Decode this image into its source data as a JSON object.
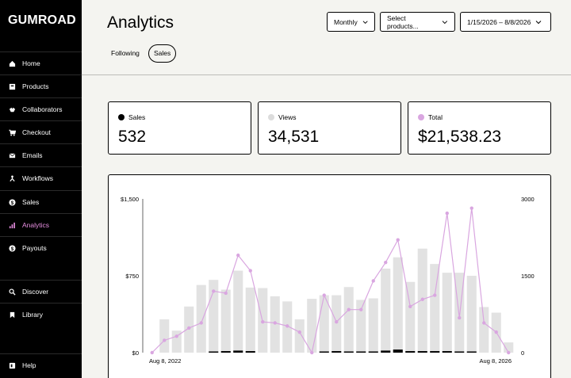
{
  "brand": "GUMROAD",
  "sidebar": {
    "items": [
      {
        "label": "Home",
        "icon": "home-icon"
      },
      {
        "label": "Products",
        "icon": "products-icon"
      },
      {
        "label": "Collaborators",
        "icon": "collaborators-icon"
      },
      {
        "label": "Checkout",
        "icon": "cart-icon"
      },
      {
        "label": "Emails",
        "icon": "mail-icon"
      },
      {
        "label": "Workflows",
        "icon": "workflow-icon"
      },
      {
        "label": "Sales",
        "icon": "dollar-icon"
      },
      {
        "label": "Analytics",
        "icon": "bar-chart-icon"
      },
      {
        "label": "Payouts",
        "icon": "payout-icon"
      },
      {
        "label": "Discover",
        "icon": "search-icon"
      },
      {
        "label": "Library",
        "icon": "bookmark-icon"
      },
      {
        "label": "Help",
        "icon": "help-icon"
      }
    ],
    "active": "Analytics",
    "active_color": "#e68ee0"
  },
  "header": {
    "title": "Analytics",
    "tabs": {
      "following": "Following",
      "sales": "Sales"
    },
    "filters": {
      "period": "Monthly",
      "products": "Select products...",
      "date_range": "1/15/2026 – 8/8/2026"
    }
  },
  "stats": {
    "sales": {
      "label": "Sales",
      "value": "532",
      "color": "#000000"
    },
    "views": {
      "label": "Views",
      "value": "34,531",
      "color": "#dcdcdc"
    },
    "total": {
      "label": "Total",
      "value": "$21,538.23",
      "color": "#d9a6e0"
    }
  },
  "chart_data": {
    "type": "bar",
    "x_start_label": "Aug 8, 2022",
    "x_end_label": "Aug 8, 2026",
    "left_axis_ticks": [
      "$0",
      "$750",
      "$1,500"
    ],
    "right_axis_ticks": [
      "0",
      "1500",
      "3000"
    ],
    "left_ylim": [
      0,
      1500
    ],
    "right_ylim": [
      0,
      3000
    ],
    "series": [
      {
        "name": "Views",
        "axis": "right",
        "color": "#e2e2e2",
        "values": [
          0,
          650,
          430,
          900,
          1320,
          1420,
          1230,
          1600,
          1270,
          1260,
          1100,
          1000,
          650,
          1050,
          1120,
          1120,
          1280,
          1030,
          1060,
          1640,
          1860,
          1380,
          2030,
          1730,
          1560,
          1560,
          1500,
          890,
          780,
          200
        ]
      },
      {
        "name": "Sales",
        "axis": "right",
        "color": "#000000",
        "values": [
          0,
          0,
          0,
          0,
          0,
          20,
          30,
          40,
          30,
          0,
          0,
          0,
          0,
          0,
          20,
          30,
          20,
          20,
          20,
          40,
          60,
          30,
          30,
          30,
          30,
          20,
          20,
          0,
          0,
          0
        ]
      },
      {
        "name": "Total",
        "axis": "left",
        "color": "#d9a6e0",
        "values": [
          0,
          120,
          160,
          240,
          290,
          600,
          580,
          950,
          800,
          300,
          290,
          260,
          200,
          0,
          560,
          300,
          420,
          420,
          700,
          880,
          1100,
          450,
          520,
          560,
          1360,
          340,
          1410,
          290,
          200,
          0
        ]
      }
    ],
    "grid": false
  }
}
